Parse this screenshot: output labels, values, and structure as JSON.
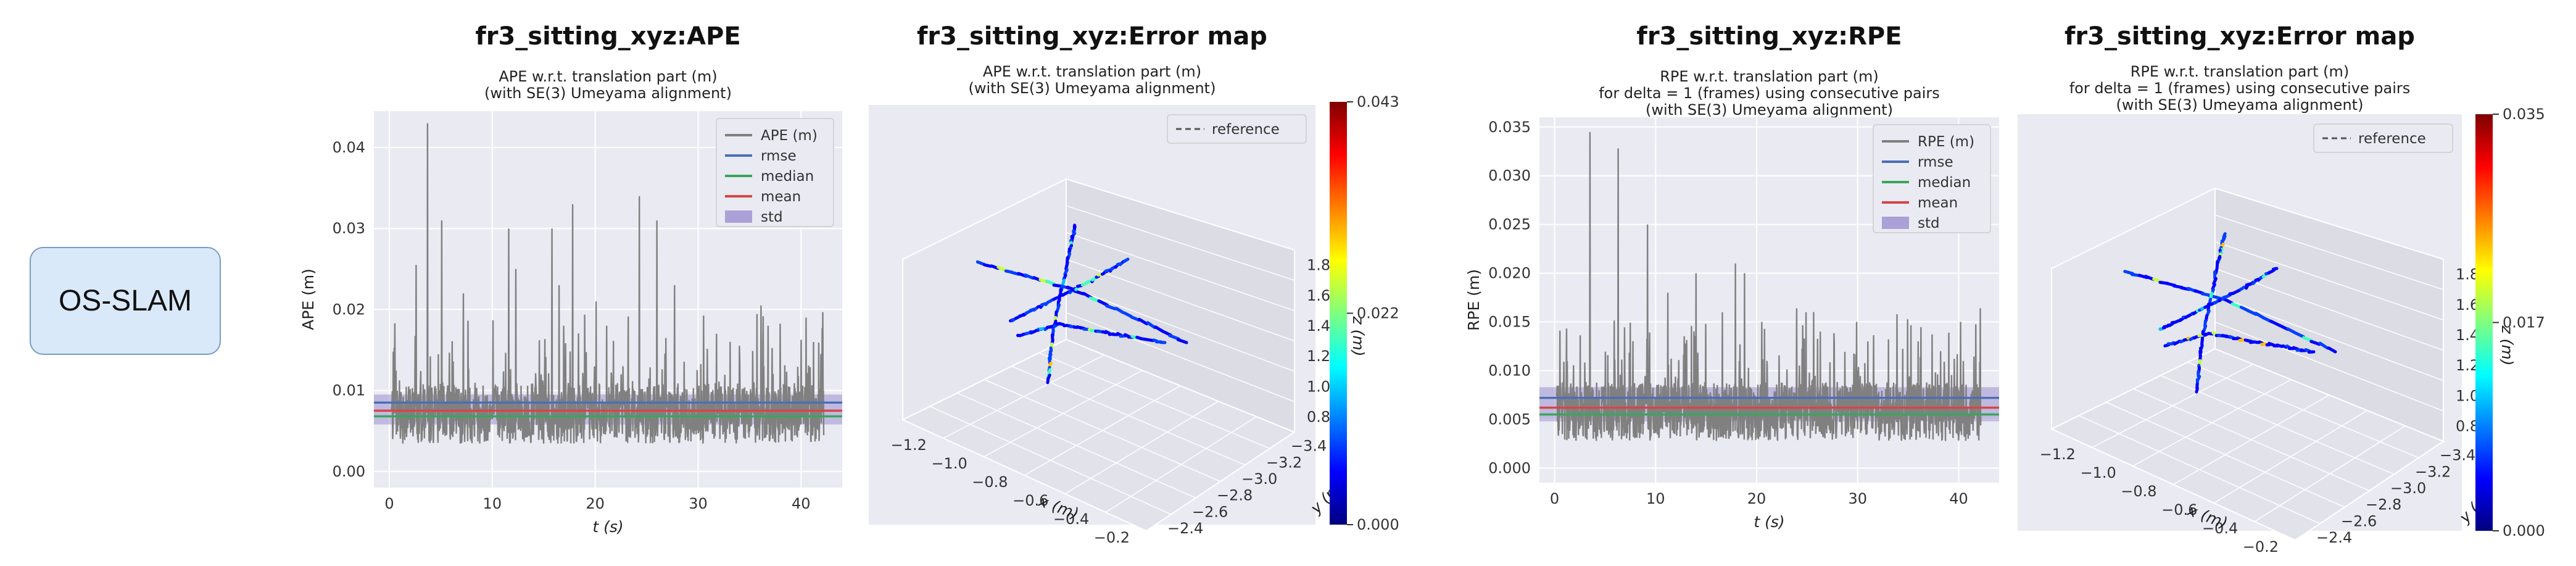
{
  "method_label": "OS-SLAM",
  "colors": {
    "ape_line": "#808080",
    "rmse": "#4a6fb5",
    "median": "#3aa55b",
    "mean": "#d64545",
    "std": "#9c8fd0",
    "grid": "#e5e5e5"
  },
  "chart_data": [
    {
      "type": "line",
      "title": "fr3_sitting_xyz:APE",
      "subtitle": [
        "APE w.r.t. translation part (m)",
        "(with SE(3) Umeyama alignment)"
      ],
      "xlabel": "t (s)",
      "ylabel": "APE (m)",
      "xlim": [
        -1.5,
        44
      ],
      "ylim": [
        -0.002,
        0.0445
      ],
      "xticks": [
        0,
        10,
        20,
        30,
        40
      ],
      "yticks": [
        0.0,
        0.01,
        0.02,
        0.03,
        0.04
      ],
      "ytick_labels": [
        "0.00",
        "0.01",
        "0.02",
        "0.03",
        "0.04"
      ],
      "legend": [
        "APE (m)",
        "rmse",
        "median",
        "mean",
        "std"
      ],
      "legend_position": "top-right",
      "grid": true,
      "stats": {
        "rmse": 0.0085,
        "median": 0.0068,
        "mean": 0.0075,
        "std_band": [
          0.0058,
          0.0095
        ]
      },
      "series_peaks": [
        [
          2.6,
          0.0255
        ],
        [
          3.7,
          0.043
        ],
        [
          5.1,
          0.031
        ],
        [
          7.2,
          0.022
        ],
        [
          11.6,
          0.03
        ],
        [
          12.3,
          0.025
        ],
        [
          15.8,
          0.03
        ],
        [
          16.5,
          0.023
        ],
        [
          17.8,
          0.033
        ],
        [
          20.1,
          0.021
        ],
        [
          21.1,
          0.018
        ],
        [
          24.3,
          0.034
        ],
        [
          26.0,
          0.031
        ],
        [
          27.7,
          0.023
        ],
        [
          31.8,
          0.017
        ],
        [
          33.1,
          0.016
        ],
        [
          36.8,
          0.018
        ],
        [
          40.5,
          0.019
        ],
        [
          41.2,
          0.016
        ]
      ]
    },
    {
      "type": "scatter",
      "title": "fr3_sitting_xyz:Error map",
      "subtitle": [
        "APE w.r.t. translation part (m)",
        "(with SE(3) Umeyama alignment)"
      ],
      "xlabel": "x (m)",
      "ylabel": "y (m)",
      "zlabel": "z (m)",
      "xticks": [
        "−1.2",
        "−1.0",
        "−0.8",
        "−0.6",
        "−0.4",
        "−0.2"
      ],
      "yticks": [
        "−2.4",
        "−2.6",
        "−2.8",
        "−3.0",
        "−3.2",
        "−3.4"
      ],
      "zticks": [
        "1.8",
        "1.6",
        "1.4",
        "1.2",
        "1.0",
        "0.8"
      ],
      "legend": [
        "reference"
      ],
      "legend_position": "top-right",
      "colorbar": {
        "min": "0.000",
        "mid": "0.022",
        "max": "0.043"
      }
    },
    {
      "type": "line",
      "title": "fr3_sitting_xyz:RPE",
      "subtitle": [
        "RPE w.r.t. translation part (m)",
        "for delta = 1 (frames) using consecutive pairs",
        "(with SE(3) Umeyama alignment)"
      ],
      "xlabel": "t (s)",
      "ylabel": "RPE (m)",
      "xlim": [
        -1.5,
        44
      ],
      "ylim": [
        -0.0015,
        0.036
      ],
      "xticks": [
        0,
        10,
        20,
        30,
        40
      ],
      "yticks": [
        0.0,
        0.005,
        0.01,
        0.015,
        0.02,
        0.025,
        0.03,
        0.035
      ],
      "ytick_labels": [
        "0.000",
        "0.005",
        "0.010",
        "0.015",
        "0.020",
        "0.025",
        "0.030",
        "0.035"
      ],
      "legend": [
        "RPE (m)",
        "rmse",
        "median",
        "mean",
        "std"
      ],
      "legend_position": "top-right",
      "grid": true,
      "stats": {
        "rmse": 0.0072,
        "median": 0.0055,
        "mean": 0.0062,
        "std_band": [
          0.0048,
          0.0083
        ]
      },
      "series_peaks": [
        [
          3.5,
          0.0345
        ],
        [
          6.3,
          0.0328
        ],
        [
          9.2,
          0.025
        ],
        [
          11.2,
          0.018
        ],
        [
          14.0,
          0.02
        ],
        [
          16.6,
          0.016
        ],
        [
          17.9,
          0.021
        ],
        [
          18.8,
          0.02
        ],
        [
          20.5,
          0.015
        ],
        [
          24.9,
          0.016
        ],
        [
          26.3,
          0.014
        ],
        [
          29.9,
          0.015
        ],
        [
          31.0,
          0.013
        ],
        [
          36.0,
          0.013
        ],
        [
          38.2,
          0.012
        ],
        [
          40.2,
          0.015
        ]
      ]
    },
    {
      "type": "scatter",
      "title": "fr3_sitting_xyz:Error map",
      "subtitle": [
        "RPE w.r.t. translation part (m)",
        "for delta = 1 (frames) using consecutive pairs",
        "(with SE(3) Umeyama alignment)"
      ],
      "xlabel": "x (m)",
      "ylabel": "y (m)",
      "zlabel": "z (m)",
      "xticks": [
        "−1.2",
        "−1.0",
        "−0.8",
        "−0.6",
        "−0.4",
        "−0.2"
      ],
      "yticks": [
        "−2.4",
        "−2.6",
        "−2.8",
        "−3.0",
        "−3.2",
        "−3.4"
      ],
      "zticks": [
        "1.8",
        "1.6",
        "1.4",
        "1.2",
        "1.0",
        "0.8"
      ],
      "legend": [
        "reference"
      ],
      "legend_position": "top-right",
      "colorbar": {
        "min": "0.000",
        "mid": "0.017",
        "max": "0.035"
      }
    }
  ]
}
